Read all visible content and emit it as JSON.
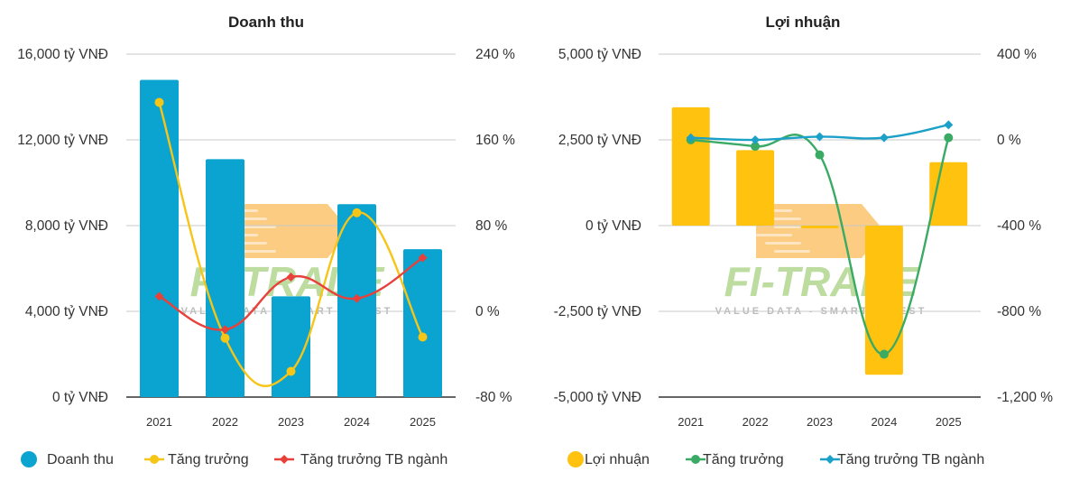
{
  "colors": {
    "revenue_bar": "#0ba3cf",
    "revenue_growth": "#f5c518",
    "revenue_industry": "#e8413c",
    "profit_bar": "#ffc20e",
    "profit_growth": "#3aaa64",
    "profit_industry": "#1ba0c8",
    "grid": "#c8c8c8",
    "axis": "#333333"
  },
  "watermark": {
    "brand": "FI-TRADE",
    "tagline": "VALUE DATA - SMART INVEST"
  },
  "chart_data": [
    {
      "type": "bar",
      "title": "Doanh thu",
      "categories": [
        "2021",
        "2022",
        "2023",
        "2024",
        "2025"
      ],
      "left_axis": {
        "min": 0,
        "max": 16000,
        "ticks": [
          0,
          4000,
          8000,
          12000,
          16000
        ],
        "tick_labels": [
          "0 tỷ VNĐ",
          "4,000 tỷ VNĐ",
          "8,000 tỷ VNĐ",
          "12,000 tỷ VNĐ",
          "16,000 tỷ VNĐ"
        ]
      },
      "right_axis": {
        "min": -80,
        "max": 240,
        "ticks": [
          -80,
          0,
          80,
          160,
          240
        ],
        "tick_labels": [
          "-80 %",
          "0 %",
          "80 %",
          "160 %",
          "240 %"
        ]
      },
      "grid": true,
      "legend_position": "bottom-left",
      "series": [
        {
          "name": "Doanh thu",
          "kind": "bar",
          "axis": "left",
          "values": [
            14800,
            11100,
            4700,
            9000,
            6900
          ]
        },
        {
          "name": "Tăng trưởng",
          "kind": "line",
          "axis": "right",
          "values": [
            195,
            -25,
            -56,
            92,
            -24
          ]
        },
        {
          "name": "Tăng trưởng TB ngành",
          "kind": "line",
          "axis": "right",
          "values": [
            14,
            -17,
            32,
            12,
            50
          ]
        }
      ]
    },
    {
      "type": "bar",
      "title": "Lợi nhuận",
      "categories": [
        "2021",
        "2022",
        "2023",
        "2024",
        "2025"
      ],
      "left_axis": {
        "min": -5000,
        "max": 5000,
        "ticks": [
          -5000,
          -2500,
          0,
          2500,
          5000
        ],
        "tick_labels": [
          "-5,000 tỷ VNĐ",
          "-2,500 tỷ VNĐ",
          "0 tỷ VNĐ",
          "2,500 tỷ VNĐ",
          "5,000 tỷ VNĐ"
        ]
      },
      "right_axis": {
        "min": -1200,
        "max": 400,
        "ticks": [
          -1200,
          -800,
          -400,
          0,
          400
        ],
        "tick_labels": [
          "-1,200 %",
          "-800 %",
          "-400 %",
          "0 %",
          "400 %"
        ]
      },
      "grid": true,
      "legend_position": "bottom-left",
      "series": [
        {
          "name": "Lợi nhuận",
          "kind": "bar",
          "axis": "left",
          "values": [
            3450,
            2200,
            -80,
            -4350,
            1850
          ]
        },
        {
          "name": "Tăng trưởng",
          "kind": "line",
          "axis": "right",
          "values": [
            0,
            -30,
            -70,
            -1000,
            10
          ]
        },
        {
          "name": "Tăng trưởng TB ngành",
          "kind": "line",
          "axis": "right",
          "values": [
            10,
            0,
            15,
            10,
            70
          ]
        }
      ]
    }
  ]
}
